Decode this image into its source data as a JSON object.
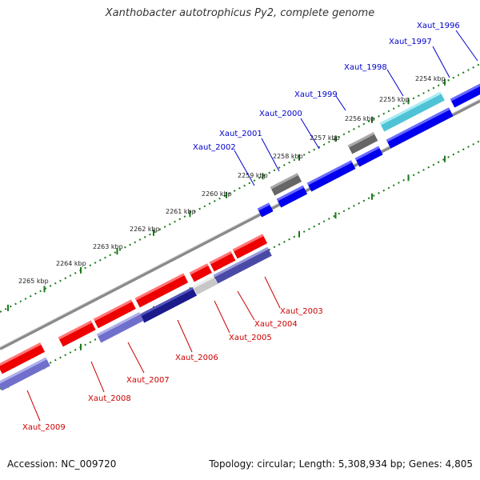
{
  "title": "Xanthobacter autotrophicus Py2, complete genome",
  "footer": {
    "accession": "Accession: NC_009720",
    "stats": "Topology: circular; Length: 5,308,934 bp; Genes: 4,805"
  },
  "colors": {
    "forward": "#0000ee",
    "reverse": "#ee0000",
    "backbone": "#8a8a8a",
    "ticks": "#1a7a1a"
  },
  "ticks": [
    {
      "label": "2254 kbp"
    },
    {
      "label": "2255 kbp"
    },
    {
      "label": "2256 kbp"
    },
    {
      "label": "2257 kbp"
    },
    {
      "label": "2258 kbp"
    },
    {
      "label": "2259 kbp"
    },
    {
      "label": "2260 kbp"
    },
    {
      "label": "2261 kbp"
    },
    {
      "label": "2262 kbp"
    },
    {
      "label": "2263 kbp"
    },
    {
      "label": "2264 kbp"
    },
    {
      "label": "2265 kbp"
    }
  ],
  "forward_genes": [
    {
      "name": "Xaut_1996"
    },
    {
      "name": "Xaut_1997"
    },
    {
      "name": "Xaut_1998"
    },
    {
      "name": "Xaut_1999"
    },
    {
      "name": "Xaut_2000"
    },
    {
      "name": "Xaut_2001"
    },
    {
      "name": "Xaut_2002"
    }
  ],
  "reverse_genes": [
    {
      "name": "Xaut_2003"
    },
    {
      "name": "Xaut_2004"
    },
    {
      "name": "Xaut_2005"
    },
    {
      "name": "Xaut_2006"
    },
    {
      "name": "Xaut_2007"
    },
    {
      "name": "Xaut_2008"
    },
    {
      "name": "Xaut_2009"
    }
  ]
}
